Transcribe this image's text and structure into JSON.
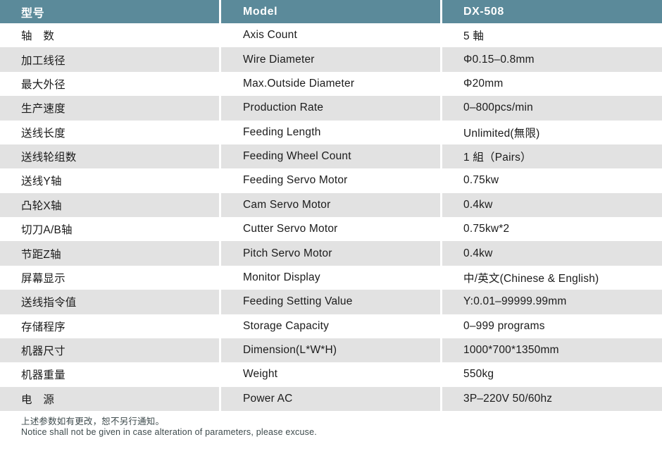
{
  "table": {
    "header": {
      "col1": "型号",
      "col2": "Model",
      "col3": "DX-508"
    },
    "rows": [
      {
        "name_cn": "轴　数",
        "name_en": "Axis Count",
        "value": "5 軸"
      },
      {
        "name_cn": "加工线径",
        "name_en": "Wire Diameter",
        "value": "Φ0.15–0.8mm"
      },
      {
        "name_cn": "最大外径",
        "name_en": "Max.Outside Diameter",
        "value": "Φ20mm"
      },
      {
        "name_cn": "生产速度",
        "name_en": "Production Rate",
        "value": "0–800pcs/min"
      },
      {
        "name_cn": "送线长度",
        "name_en": "Feeding Length",
        "value": "Unlimited(無限)"
      },
      {
        "name_cn": "送线轮组数",
        "name_en": "Feeding Wheel Count",
        "value": "1 組（Pairs）"
      },
      {
        "name_cn": "送线Y轴",
        "name_en": "Feeding Servo Motor",
        "value": "0.75kw"
      },
      {
        "name_cn": "凸轮X轴",
        "name_en": "Cam Servo Motor",
        "value": "0.4kw"
      },
      {
        "name_cn": "切刀A/B轴",
        "name_en": "Cutter Servo Motor",
        "value": "0.75kw*2"
      },
      {
        "name_cn": "节距Z轴",
        "name_en": "Pitch Servo Motor",
        "value": "0.4kw"
      },
      {
        "name_cn": "屏幕显示",
        "name_en": "Monitor Display",
        "value": "中/英文(Chinese & English)"
      },
      {
        "name_cn": "送线指令值",
        "name_en": "Feeding Setting Value",
        "value": "Y:0.01–99999.99mm"
      },
      {
        "name_cn": "存储程序",
        "name_en": "Storage Capacity",
        "value": "0–999 programs"
      },
      {
        "name_cn": "机器尺寸",
        "name_en": "Dimension(L*W*H)",
        "value": "1000*700*1350mm"
      },
      {
        "name_cn": "机器重量",
        "name_en": "Weight",
        "value": "550kg"
      },
      {
        "name_cn": "电　源",
        "name_en": "Power AC",
        "value": "3P–220V 50/60hz"
      }
    ]
  },
  "footer": {
    "line1_cn": "上述参数如有更改，恕不另行通知。",
    "line2_en": "Notice shall not be given in case alteration of parameters, please excuse."
  },
  "colors": {
    "header_bg": "#5b8a9a",
    "row_alt_bg": "#e2e2e2",
    "text_dark": "#1b1b1b",
    "footer_text": "#3d4a4c"
  }
}
